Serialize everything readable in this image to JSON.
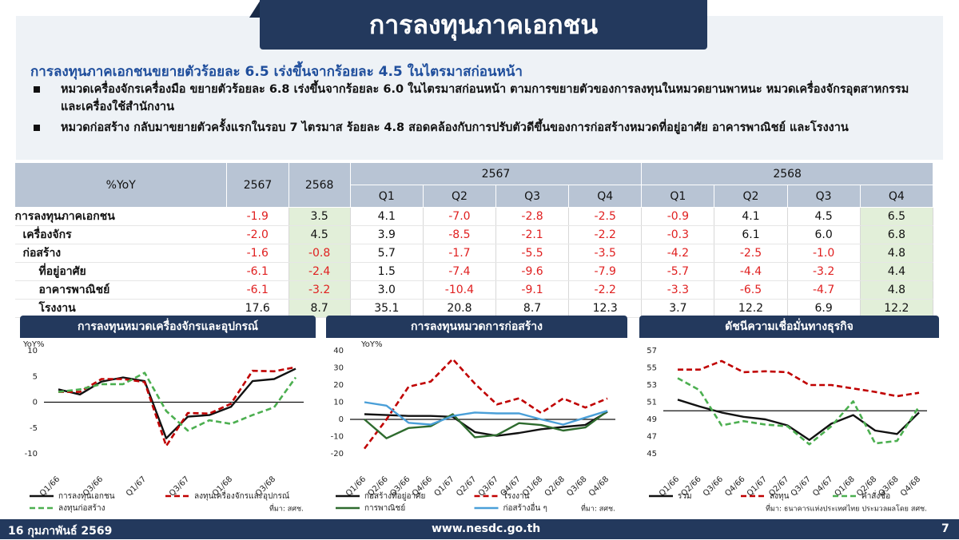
{
  "header": {
    "title": "การลงทุนภาคเอกชน"
  },
  "summary": {
    "headline": "การลงทุนภาคเอกชนขยายตัวร้อยละ 6.5 เร่งขึ้นจากร้อยละ 4.5 ในไตรมาสก่อนหน้า",
    "bullets": [
      "หมวดเครื่องจักรเครื่องมือ ขยายตัวร้อยละ 6.8 เร่งขึ้นจากร้อยละ 6.0 ในไตรมาสก่อนหน้า ตามการขยายตัวของการลงทุนในหมวดยานพาหนะ หมวดเครื่องจักรอุตสาหกรรม และเครื่องใช้สำนักงาน",
      "หมวดก่อสร้าง กลับมาขยายตัวครั้งแรกในรอบ 7 ไตรมาส ร้อยละ 4.8 สอดคล้องกับการปรับตัวดีขึ้นของการก่อสร้างหมวดที่อยู่อาศัย อาคารพาณิชย์ และโรงงาน"
    ]
  },
  "table": {
    "header_top": [
      "%YoY",
      "2567",
      "2568",
      "2567",
      "2568"
    ],
    "header_quarters": [
      "Q1",
      "Q2",
      "Q3",
      "Q4",
      "Q1",
      "Q2",
      "Q3",
      "Q4"
    ],
    "rows": [
      {
        "label": "การลงทุนภาคเอกชน",
        "values": [
          "-1.9",
          "3.5",
          "4.1",
          "-7.0",
          "-2.8",
          "-2.5",
          "-0.9",
          "4.1",
          "4.5",
          "6.5"
        ]
      },
      {
        "label": "เครื่องจักร",
        "values": [
          "-2.0",
          "4.5",
          "3.9",
          "-8.5",
          "-2.1",
          "-2.2",
          "-0.3",
          "6.1",
          "6.0",
          "6.8"
        ]
      },
      {
        "label": "ก่อสร้าง",
        "values": [
          "-1.6",
          "-0.8",
          "5.7",
          "-1.7",
          "-5.5",
          "-3.5",
          "-4.2",
          "-2.5",
          "-1.0",
          "4.8"
        ]
      },
      {
        "label": "ที่อยู่อาศัย",
        "values": [
          "-6.1",
          "-2.4",
          "1.5",
          "-7.4",
          "-9.6",
          "-7.9",
          "-5.7",
          "-4.4",
          "-3.2",
          "4.4"
        ]
      },
      {
        "label": "อาคารพาณิชย์",
        "values": [
          "-6.1",
          "-3.2",
          "3.0",
          "-10.4",
          "-9.1",
          "-2.2",
          "-3.3",
          "-6.5",
          "-4.7",
          "4.8"
        ]
      },
      {
        "label": "โรงงาน",
        "values": [
          "17.6",
          "8.7",
          "35.1",
          "20.8",
          "8.7",
          "12.3",
          "3.7",
          "12.2",
          "6.9",
          "12.2"
        ]
      }
    ]
  },
  "chart_data": [
    {
      "type": "line",
      "title": "การลงทุนหมวดเครื่องจักรและอุปกรณ์",
      "ylabel": "YoY%",
      "source": "ที่มา: สศช.",
      "categories": [
        "Q1/66",
        null,
        "Q3/66",
        null,
        "Q1/67",
        null,
        "Q3/67",
        null,
        "Q1/68",
        null,
        "Q3/68",
        null
      ],
      "ylim": [
        -10,
        10
      ],
      "yticks": [
        10,
        5,
        0,
        -5,
        -10
      ],
      "hline": 0,
      "series": [
        {
          "name": "การลงทุนเอกชน",
          "color": "#111111",
          "dash": false,
          "values": [
            2.5,
            1.5,
            4,
            4.8,
            4.1,
            -7.0,
            -2.8,
            -2.5,
            -0.9,
            4.1,
            4.5,
            6.5
          ]
        },
        {
          "name": "ลงทุนเครื่องจักรและอุปกรณ์",
          "color": "#c00000",
          "dash": true,
          "values": [
            2,
            2,
            4.5,
            4.5,
            3.9,
            -8.5,
            -2.1,
            -2.2,
            -0.3,
            6.1,
            6.0,
            6.8
          ]
        },
        {
          "name": "ลงทุนก่อสร้าง",
          "color": "#4caf50",
          "dash": true,
          "values": [
            2,
            2.5,
            3.5,
            3.5,
            5.7,
            -1.7,
            -5.5,
            -3.5,
            -4.2,
            -2.5,
            -1.0,
            4.8
          ]
        }
      ]
    },
    {
      "type": "line",
      "title": "การลงทุนหมวดการก่อสร้าง",
      "ylabel": "YoY%",
      "source": "ที่มา: สศช.",
      "categories": [
        "Q1/66",
        "Q2/66",
        "Q3/66",
        "Q4/66",
        "Q1/67",
        "Q2/67",
        "Q3/67",
        "Q4/67",
        "Q1/68",
        "Q2/68",
        "Q3/68",
        "Q4/68"
      ],
      "ylim": [
        -20,
        40
      ],
      "yticks": [
        40,
        30,
        20,
        10,
        0,
        -10,
        -20
      ],
      "hline": 0,
      "series": [
        {
          "name": "ก่อสร้างที่อยู่อาศัย",
          "color": "#111111",
          "dash": false,
          "values": [
            3,
            2.5,
            2,
            2,
            1.5,
            -7.4,
            -9.6,
            -7.9,
            -5.7,
            -4.4,
            -3.2,
            4.4
          ]
        },
        {
          "name": "โรงงาน",
          "color": "#c00000",
          "dash": true,
          "values": [
            -17,
            0,
            19,
            22,
            35.1,
            20.8,
            8.7,
            12.3,
            3.7,
            12.2,
            6.9,
            12.2
          ]
        },
        {
          "name": "การพาณิชย์",
          "color": "#2e6b2e",
          "dash": false,
          "values": [
            0,
            -11,
            -5,
            -4,
            3.0,
            -10.4,
            -9.1,
            -2.2,
            -3.3,
            -6.5,
            -4.7,
            4.8
          ]
        },
        {
          "name": "ก่อสร้างอื่น ๆ",
          "color": "#4a9fd8",
          "dash": false,
          "values": [
            10,
            8,
            -2,
            -3,
            2,
            4,
            3.5,
            3.5,
            0,
            -3,
            1,
            5
          ]
        }
      ]
    },
    {
      "type": "line",
      "title": "ดัชนีความเชื่อมั่นทางธุรกิจ",
      "source": "ที่มา: ธนาคารแห่งประเทศไทย ประมวลผลโดย สศช.",
      "categories": [
        "Q1/66",
        "Q2/66",
        "Q3/66",
        "Q4/66",
        "Q1/67",
        "Q2/67",
        "Q3/67",
        "Q4/67",
        "Q1/68",
        "Q2/68",
        "Q3/68",
        "Q4/68"
      ],
      "ylim": [
        45,
        57
      ],
      "yticks": [
        57,
        55,
        53,
        51,
        49,
        47,
        45
      ],
      "hline": 50,
      "series": [
        {
          "name": "รวม",
          "color": "#111111",
          "dash": false,
          "values": [
            51.3,
            50.5,
            49.8,
            49.3,
            49,
            48.3,
            46.6,
            48.5,
            49.5,
            47.7,
            47.3,
            49.8
          ]
        },
        {
          "name": "ลงทุน",
          "color": "#c00000",
          "dash": true,
          "values": [
            54.8,
            54.8,
            55.8,
            54.5,
            54.6,
            54.5,
            53,
            53,
            52.6,
            52.2,
            51.7,
            52.1
          ]
        },
        {
          "name": "คำสั่งซื้อ",
          "color": "#4caf50",
          "dash": true,
          "values": [
            53.8,
            52.4,
            48.3,
            48.8,
            48.4,
            48.2,
            46.1,
            48.2,
            51.1,
            46.2,
            46.5,
            50.5
          ]
        }
      ]
    }
  ],
  "footer": {
    "date": "16 กุมภาพันธ์ 2569",
    "url": "www.nesdc.go.th",
    "page": "7"
  }
}
